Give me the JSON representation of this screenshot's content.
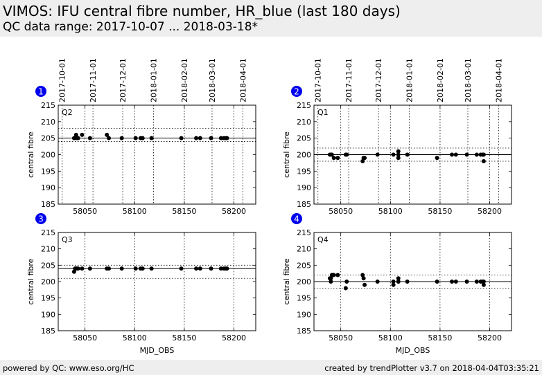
{
  "header": {
    "title": "VIMOS: IFU central fibre number, HR_blue (last 180 days)",
    "subtitle": "QC data range: 2017-10-07 ... 2018-03-18*"
  },
  "footer": {
    "left": "powered by QC: www.eso.org/HC",
    "right": "created by trendPlotter v3.7 on 2018-04-04T03:35:21"
  },
  "colors": {
    "header_bg": "#eeeeee",
    "badge": "#0000ee",
    "points": "#000000"
  },
  "chart_data": [
    {
      "type": "scatter",
      "badge": "1",
      "panel_label": "Q2",
      "xlabel": "",
      "ylabel": "central fibre",
      "xlim": [
        58023,
        58222
      ],
      "ylim": [
        185,
        215
      ],
      "xticks": [
        58050,
        58100,
        58150,
        58200
      ],
      "yticks": [
        185,
        190,
        195,
        200,
        205,
        210,
        215
      ],
      "top_axis": {
        "ticks": [
          "2017-10-01",
          "2017-11-01",
          "2017-12-01",
          "2018-01-01",
          "2018-02-01",
          "2018-03-01",
          "2018-04-01"
        ],
        "positions": [
          58027,
          58058,
          58088,
          58119,
          58150,
          58178,
          58209
        ]
      },
      "reference": {
        "mean": 205,
        "upper": 208,
        "lower": 204
      },
      "x": [
        58039,
        58040,
        58041,
        58042,
        58043,
        58047,
        58055,
        58072,
        58074,
        58087,
        58101,
        58106,
        58108,
        58117,
        58147,
        58162,
        58166,
        58177,
        58187,
        58190,
        58192,
        58193
      ],
      "y": [
        205,
        205,
        206,
        205,
        205,
        206,
        205,
        206,
        205,
        205,
        205,
        205,
        205,
        205,
        205,
        205,
        205,
        205,
        205,
        205,
        205,
        205
      ]
    },
    {
      "type": "scatter",
      "badge": "2",
      "panel_label": "Q1",
      "xlabel": "",
      "ylabel": "central fibre",
      "xlim": [
        58023,
        58222
      ],
      "ylim": [
        185,
        215
      ],
      "xticks": [
        58050,
        58100,
        58150,
        58200
      ],
      "yticks": [
        185,
        190,
        195,
        200,
        205,
        210,
        215
      ],
      "top_axis": {
        "ticks": [
          "2017-10-01",
          "2017-11-01",
          "2017-12-01",
          "2018-01-01",
          "2018-02-01",
          "2018-03-01",
          "2018-04-01"
        ],
        "positions": [
          58027,
          58058,
          58088,
          58119,
          58150,
          58178,
          58209
        ]
      },
      "reference": {
        "mean": 200,
        "upper": 202,
        "lower": 198
      },
      "x": [
        58039,
        58040,
        58041,
        58043,
        58047,
        58055,
        58056,
        58072,
        58073,
        58074,
        58087,
        58103,
        58108,
        58108,
        58108,
        58117,
        58147,
        58162,
        58166,
        58177,
        58187,
        58191,
        58193,
        58194,
        58194
      ],
      "y": [
        200,
        200,
        200,
        199,
        199,
        200,
        200,
        198,
        199,
        199,
        200,
        200,
        199,
        200,
        201,
        200,
        199,
        200,
        200,
        200,
        200,
        200,
        200,
        198,
        200
      ]
    },
    {
      "type": "scatter",
      "badge": "3",
      "panel_label": "Q3",
      "xlabel": "MJD_OBS",
      "ylabel": "central fibre",
      "xlim": [
        58023,
        58222
      ],
      "ylim": [
        185,
        215
      ],
      "xticks": [
        58050,
        58100,
        58150,
        58200
      ],
      "yticks": [
        185,
        190,
        195,
        200,
        205,
        210,
        215
      ],
      "reference": {
        "mean": 204,
        "upper": 205,
        "lower": 201
      },
      "x": [
        58039,
        58040,
        58041,
        58042,
        58043,
        58047,
        58055,
        58072,
        58074,
        58087,
        58101,
        58106,
        58108,
        58117,
        58147,
        58162,
        58166,
        58177,
        58187,
        58190,
        58192,
        58193
      ],
      "y": [
        203,
        204,
        204,
        204,
        204,
        204,
        204,
        204,
        204,
        204,
        204,
        204,
        204,
        204,
        204,
        204,
        204,
        204,
        204,
        204,
        204,
        204
      ]
    },
    {
      "type": "scatter",
      "badge": "4",
      "panel_label": "Q4",
      "xlabel": "MJD_OBS",
      "ylabel": "central fibre",
      "xlim": [
        58023,
        58222
      ],
      "ylim": [
        185,
        215
      ],
      "xticks": [
        58050,
        58100,
        58150,
        58200
      ],
      "yticks": [
        185,
        190,
        195,
        200,
        205,
        210,
        215
      ],
      "reference": {
        "mean": 200,
        "upper": 202,
        "lower": 198
      },
      "x": [
        58039,
        58040,
        58040,
        58041,
        58042,
        58043,
        58047,
        58055,
        58056,
        58072,
        58073,
        58074,
        58087,
        58103,
        58103,
        58108,
        58108,
        58108,
        58117,
        58147,
        58162,
        58166,
        58177,
        58187,
        58191,
        58193,
        58194,
        58194
      ],
      "y": [
        201,
        201,
        200,
        202,
        202,
        202,
        202,
        198,
        200,
        202,
        201,
        199,
        200,
        199,
        200,
        200,
        201,
        200,
        200,
        200,
        200,
        200,
        200,
        200,
        200,
        200,
        199,
        200
      ]
    }
  ]
}
